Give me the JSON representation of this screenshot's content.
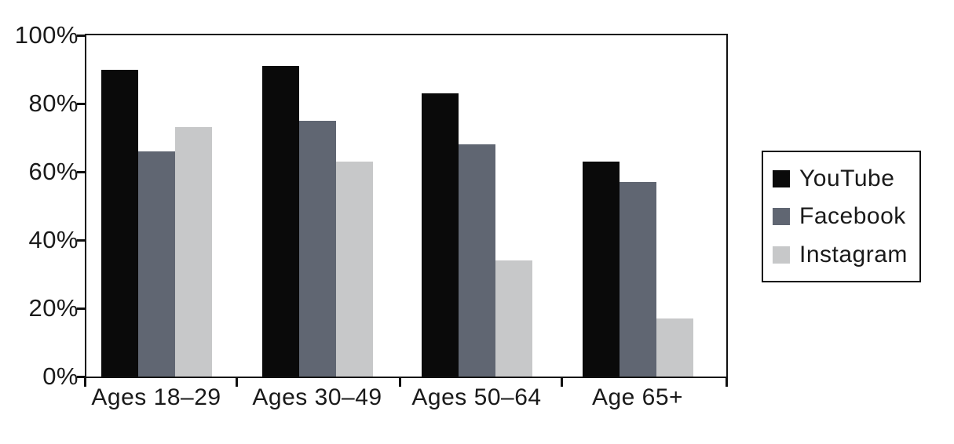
{
  "chart_data": {
    "type": "bar",
    "title": "",
    "subtitle": "",
    "xlabel": "",
    "ylabel": "",
    "categories": [
      "Ages 18–29",
      "Ages 30–49",
      "Ages 50–64",
      "Age 65+"
    ],
    "series": [
      {
        "name": "YouTube",
        "color": "#0a0a0a",
        "values": [
          90,
          91,
          83,
          63
        ]
      },
      {
        "name": "Facebook",
        "color": "#606672",
        "values": [
          66,
          75,
          68,
          57
        ]
      },
      {
        "name": "Instagram",
        "color": "#c7c8c9",
        "values": [
          73,
          63,
          34,
          17
        ]
      }
    ],
    "ylim": [
      0,
      100
    ],
    "ytick_labels": [
      "100%",
      "80%",
      "60%",
      "40%",
      "20%",
      "0%"
    ],
    "ytick_values": [
      100,
      80,
      60,
      40,
      20,
      0
    ],
    "grid": false,
    "plot_border": true,
    "legend_position": "right"
  },
  "legend": {
    "items": [
      {
        "label": "YouTube",
        "swatch_color": "#0a0a0a"
      },
      {
        "label": "Facebook",
        "swatch_color": "#606672"
      },
      {
        "label": "Instagram",
        "swatch_color": "#c7c8c9"
      }
    ]
  },
  "colors": {
    "axis": "#111111",
    "text": "#1a1a1a",
    "background": "#ffffff"
  }
}
